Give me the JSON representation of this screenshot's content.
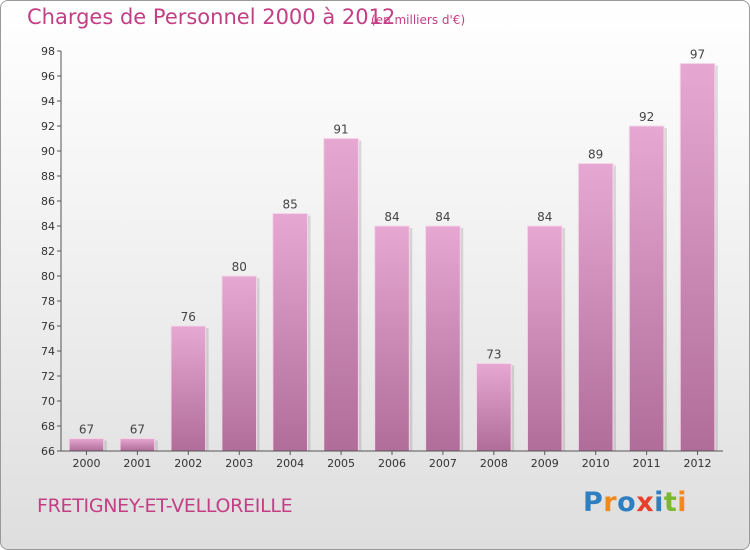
{
  "chart_data": {
    "type": "bar",
    "title": "Charges de Personnel 2000 à 2012",
    "subtitle": "(en milliers d'€)",
    "categories": [
      "2000",
      "2001",
      "2002",
      "2003",
      "2004",
      "2005",
      "2006",
      "2007",
      "2008",
      "2009",
      "2010",
      "2011",
      "2012"
    ],
    "values": [
      67,
      67,
      76,
      80,
      85,
      91,
      84,
      84,
      73,
      84,
      89,
      92,
      97
    ],
    "ylim": [
      66,
      98
    ],
    "yticks": [
      66,
      68,
      70,
      72,
      74,
      76,
      78,
      80,
      82,
      84,
      86,
      88,
      90,
      92,
      94,
      96,
      98
    ],
    "grid": false,
    "legend": "none",
    "colors": {
      "bar_top": "#e6a8d2",
      "bar_bottom": "#b06d99",
      "text": "#c33f85"
    }
  },
  "footer": {
    "town": "FRETIGNEY-ET-VELLOREILLE",
    "logo_letters": [
      {
        "ch": "P",
        "color": "#2d7fc1"
      },
      {
        "ch": "r",
        "color": "#f08a1c"
      },
      {
        "ch": "o",
        "color": "#2d7fc1"
      },
      {
        "ch": "x",
        "color": "#e8402b"
      },
      {
        "ch": "i",
        "color": "#2d7fc1"
      },
      {
        "ch": "t",
        "color": "#7cb82f"
      },
      {
        "ch": "i",
        "color": "#f08a1c"
      }
    ]
  }
}
